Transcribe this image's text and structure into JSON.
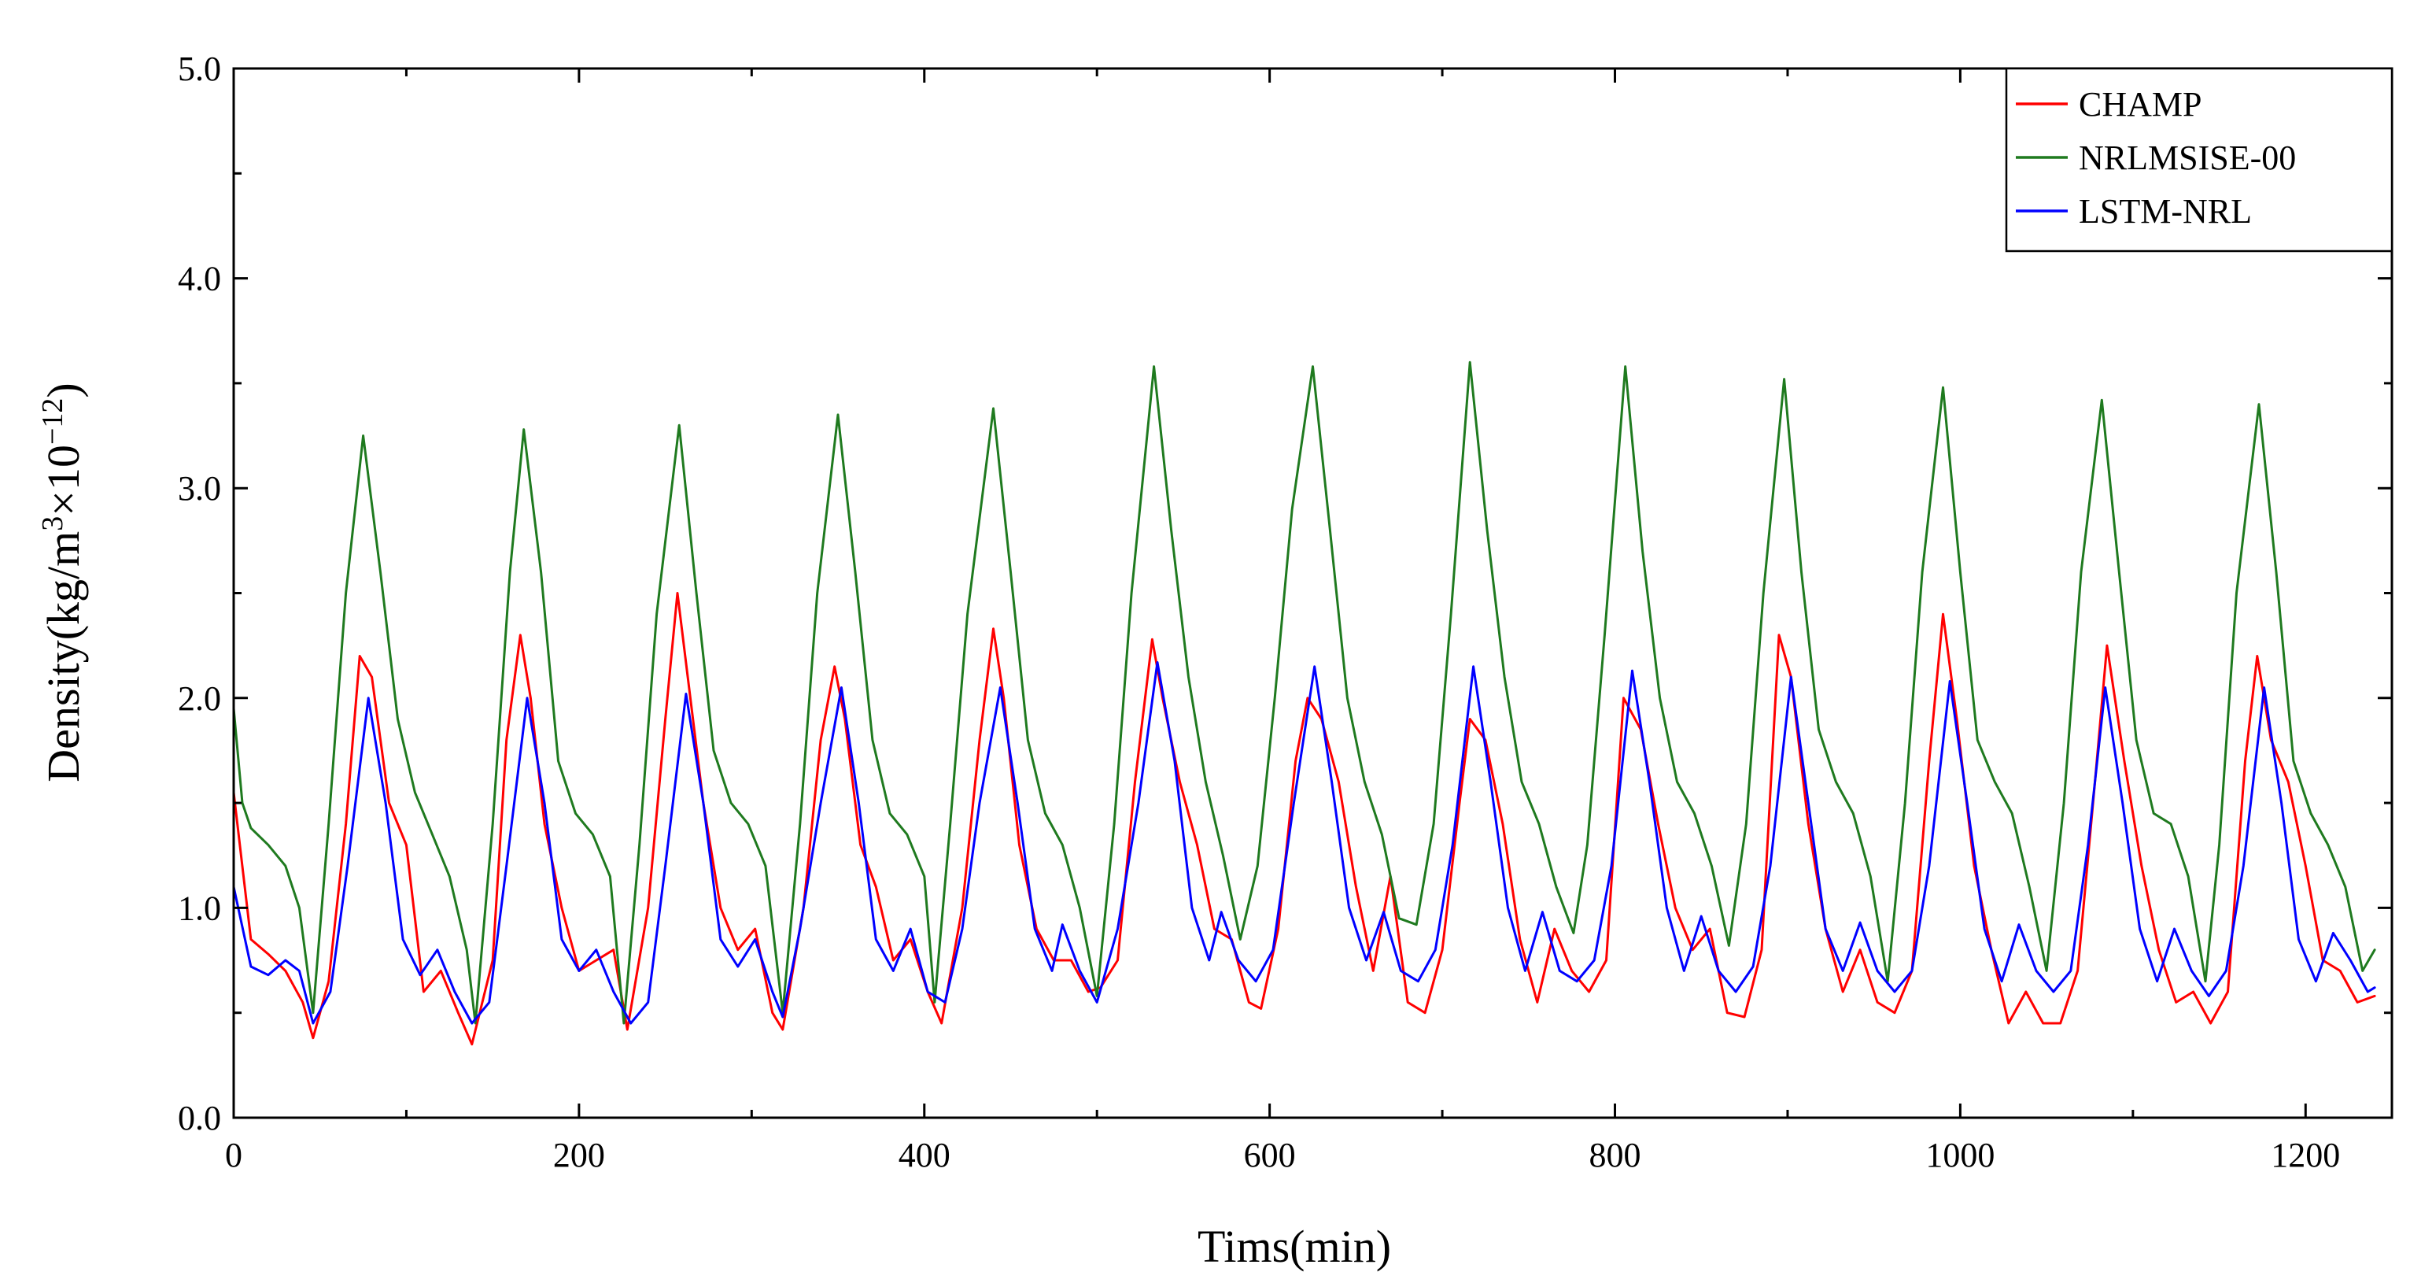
{
  "chart_data": {
    "type": "line",
    "title": "",
    "xlabel": "Tims(min)",
    "ylabel": {
      "prefix": "Density(kg/m",
      "sup1": "3",
      "mid": "×10",
      "sup2": "−12",
      "suffix": ")"
    },
    "xlim": [
      0,
      1250
    ],
    "ylim": [
      0.0,
      5.0
    ],
    "x_ticks": [
      0,
      200,
      400,
      600,
      800,
      1000,
      1200
    ],
    "x_tick_labels": [
      "0",
      "200",
      "400",
      "600",
      "800",
      "1000",
      "1200"
    ],
    "y_ticks": [
      0.0,
      1.0,
      2.0,
      3.0,
      4.0,
      5.0
    ],
    "y_tick_labels": [
      "0.0",
      "1.0",
      "2.0",
      "3.0",
      "4.0",
      "5.0"
    ],
    "grid": false,
    "legend_position": "top-right",
    "series": [
      {
        "name": "CHAMP",
        "color": "#ff0000",
        "x": [
          0,
          10,
          20,
          30,
          40,
          46,
          55,
          65,
          73,
          80,
          90,
          100,
          110,
          120,
          130,
          138,
          150,
          158,
          166,
          172,
          180,
          190,
          200,
          210,
          220,
          228,
          240,
          250,
          257,
          263,
          272,
          282,
          292,
          302,
          312,
          318,
          330,
          340,
          348,
          354,
          363,
          372,
          382,
          392,
          402,
          410,
          422,
          432,
          440,
          446,
          455,
          465,
          475,
          485,
          495,
          502,
          512,
          522,
          532,
          538,
          548,
          558,
          568,
          578,
          588,
          595,
          605,
          615,
          622,
          630,
          640,
          650,
          660,
          670,
          680,
          690,
          700,
          710,
          716,
          725,
          735,
          745,
          755,
          765,
          775,
          785,
          795,
          805,
          815,
          825,
          835,
          845,
          855,
          865,
          875,
          885,
          895,
          902,
          912,
          922,
          932,
          942,
          952,
          962,
          972,
          982,
          990,
          998,
          1008,
          1018,
          1028,
          1038,
          1048,
          1058,
          1068,
          1078,
          1085,
          1095,
          1105,
          1115,
          1125,
          1135,
          1145,
          1155,
          1165,
          1172,
          1180,
          1190,
          1200,
          1210,
          1220,
          1230,
          1240
        ],
        "values": [
          1.55,
          0.85,
          0.78,
          0.7,
          0.55,
          0.38,
          0.65,
          1.4,
          2.2,
          2.1,
          1.5,
          1.3,
          0.6,
          0.7,
          0.5,
          0.35,
          0.75,
          1.8,
          2.3,
          2.0,
          1.4,
          1.0,
          0.7,
          0.75,
          0.8,
          0.42,
          1.0,
          1.9,
          2.5,
          2.1,
          1.5,
          1.0,
          0.8,
          0.9,
          0.5,
          0.42,
          1.0,
          1.8,
          2.15,
          1.9,
          1.3,
          1.1,
          0.75,
          0.85,
          0.6,
          0.45,
          1.0,
          1.8,
          2.33,
          2.0,
          1.3,
          0.9,
          0.75,
          0.75,
          0.6,
          0.62,
          0.75,
          1.6,
          2.28,
          2.0,
          1.6,
          1.3,
          0.9,
          0.85,
          0.55,
          0.52,
          0.9,
          1.7,
          2.0,
          1.9,
          1.6,
          1.1,
          0.7,
          1.15,
          0.55,
          0.5,
          0.8,
          1.5,
          1.9,
          1.8,
          1.4,
          0.85,
          0.55,
          0.9,
          0.7,
          0.6,
          0.75,
          2.0,
          1.85,
          1.4,
          1.0,
          0.8,
          0.9,
          0.5,
          0.48,
          0.8,
          2.3,
          2.1,
          1.4,
          0.9,
          0.6,
          0.8,
          0.55,
          0.5,
          0.7,
          1.7,
          2.4,
          1.9,
          1.2,
          0.8,
          0.45,
          0.6,
          0.45,
          0.45,
          0.7,
          1.6,
          2.25,
          1.7,
          1.2,
          0.8,
          0.55,
          0.6,
          0.45,
          0.6,
          1.7,
          2.2,
          1.8,
          1.6,
          1.2,
          0.75,
          0.7,
          0.55,
          0.58
        ]
      },
      {
        "name": "NRLMSISE-00",
        "color": "#1f7a1f",
        "x": [
          0,
          5,
          10,
          20,
          30,
          38,
          46,
          55,
          65,
          75,
          85,
          95,
          105,
          115,
          125,
          135,
          140,
          150,
          160,
          168,
          178,
          188,
          198,
          208,
          218,
          226,
          235,
          245,
          258,
          268,
          278,
          288,
          298,
          308,
          318,
          328,
          338,
          350,
          360,
          370,
          380,
          390,
          400,
          406,
          415,
          425,
          440,
          450,
          460,
          470,
          480,
          490,
          500,
          510,
          520,
          533,
          543,
          553,
          563,
          573,
          583,
          593,
          603,
          613,
          625,
          635,
          645,
          655,
          665,
          675,
          685,
          695,
          705,
          716,
          726,
          736,
          746,
          756,
          766,
          776,
          784,
          794,
          806,
          816,
          826,
          836,
          846,
          856,
          866,
          876,
          886,
          898,
          908,
          918,
          928,
          938,
          948,
          958,
          968,
          978,
          990,
          1000,
          1010,
          1020,
          1030,
          1040,
          1050,
          1060,
          1070,
          1082,
          1092,
          1102,
          1112,
          1122,
          1132,
          1142,
          1150,
          1160,
          1173,
          1183,
          1193,
          1203,
          1213,
          1223,
          1233,
          1240
        ],
        "values": [
          1.95,
          1.5,
          1.38,
          1.3,
          1.2,
          1.0,
          0.5,
          1.4,
          2.5,
          3.25,
          2.6,
          1.9,
          1.55,
          1.35,
          1.15,
          0.8,
          0.45,
          1.4,
          2.6,
          3.28,
          2.6,
          1.7,
          1.45,
          1.35,
          1.15,
          0.45,
          1.3,
          2.4,
          3.3,
          2.5,
          1.75,
          1.5,
          1.4,
          1.2,
          0.5,
          1.4,
          2.5,
          3.35,
          2.6,
          1.8,
          1.45,
          1.35,
          1.15,
          0.55,
          1.4,
          2.4,
          3.38,
          2.6,
          1.8,
          1.45,
          1.3,
          1.0,
          0.58,
          1.4,
          2.5,
          3.58,
          2.8,
          2.1,
          1.6,
          1.25,
          0.85,
          1.2,
          2.0,
          2.9,
          3.58,
          2.8,
          2.0,
          1.6,
          1.35,
          0.95,
          0.92,
          1.4,
          2.4,
          3.6,
          2.8,
          2.1,
          1.6,
          1.4,
          1.1,
          0.88,
          1.3,
          2.3,
          3.58,
          2.7,
          2.0,
          1.6,
          1.45,
          1.2,
          0.82,
          1.4,
          2.5,
          3.52,
          2.6,
          1.85,
          1.6,
          1.45,
          1.15,
          0.65,
          1.5,
          2.6,
          3.48,
          2.6,
          1.8,
          1.6,
          1.45,
          1.1,
          0.7,
          1.5,
          2.6,
          3.42,
          2.6,
          1.8,
          1.45,
          1.4,
          1.15,
          0.65,
          1.3,
          2.5,
          3.4,
          2.6,
          1.7,
          1.45,
          1.3,
          1.1,
          0.7,
          0.8
        ]
      },
      {
        "name": "LSTM-NRL",
        "color": "#0000ff",
        "x": [
          0,
          10,
          20,
          30,
          38,
          46,
          56,
          66,
          78,
          88,
          98,
          108,
          118,
          128,
          138,
          148,
          158,
          170,
          180,
          190,
          200,
          210,
          220,
          230,
          240,
          250,
          262,
          272,
          282,
          292,
          302,
          312,
          318,
          328,
          340,
          352,
          362,
          372,
          382,
          392,
          402,
          412,
          422,
          432,
          444,
          454,
          464,
          474,
          480,
          490,
          500,
          512,
          524,
          535,
          545,
          555,
          565,
          572,
          582,
          592,
          602,
          614,
          626,
          636,
          646,
          656,
          666,
          676,
          686,
          696,
          706,
          718,
          728,
          738,
          748,
          758,
          768,
          778,
          788,
          798,
          810,
          820,
          830,
          840,
          850,
          860,
          870,
          880,
          890,
          902,
          912,
          922,
          932,
          942,
          952,
          962,
          972,
          982,
          994,
          1004,
          1014,
          1024,
          1034,
          1044,
          1054,
          1064,
          1074,
          1084,
          1094,
          1104,
          1114,
          1124,
          1134,
          1144,
          1154,
          1164,
          1176,
          1186,
          1196,
          1206,
          1216,
          1226,
          1236,
          1240
        ],
        "values": [
          1.1,
          0.72,
          0.68,
          0.75,
          0.7,
          0.45,
          0.6,
          1.2,
          2.0,
          1.5,
          0.85,
          0.68,
          0.8,
          0.6,
          0.45,
          0.55,
          1.2,
          2.0,
          1.5,
          0.85,
          0.7,
          0.8,
          0.6,
          0.45,
          0.55,
          1.2,
          2.02,
          1.5,
          0.85,
          0.72,
          0.85,
          0.6,
          0.48,
          0.9,
          1.5,
          2.05,
          1.5,
          0.85,
          0.7,
          0.9,
          0.6,
          0.55,
          0.9,
          1.5,
          2.05,
          1.5,
          0.9,
          0.7,
          0.92,
          0.7,
          0.55,
          0.9,
          1.5,
          2.17,
          1.7,
          1.0,
          0.75,
          0.98,
          0.75,
          0.65,
          0.8,
          1.5,
          2.15,
          1.6,
          1.0,
          0.75,
          0.98,
          0.7,
          0.65,
          0.8,
          1.3,
          2.15,
          1.6,
          1.0,
          0.7,
          0.98,
          0.7,
          0.65,
          0.75,
          1.2,
          2.13,
          1.6,
          1.0,
          0.7,
          0.96,
          0.7,
          0.6,
          0.72,
          1.2,
          2.1,
          1.5,
          0.9,
          0.7,
          0.93,
          0.7,
          0.6,
          0.7,
          1.2,
          2.08,
          1.5,
          0.9,
          0.65,
          0.92,
          0.7,
          0.6,
          0.7,
          1.3,
          2.05,
          1.5,
          0.9,
          0.65,
          0.9,
          0.7,
          0.58,
          0.7,
          1.2,
          2.05,
          1.5,
          0.85,
          0.65,
          0.88,
          0.75,
          0.6,
          0.62
        ]
      }
    ]
  }
}
